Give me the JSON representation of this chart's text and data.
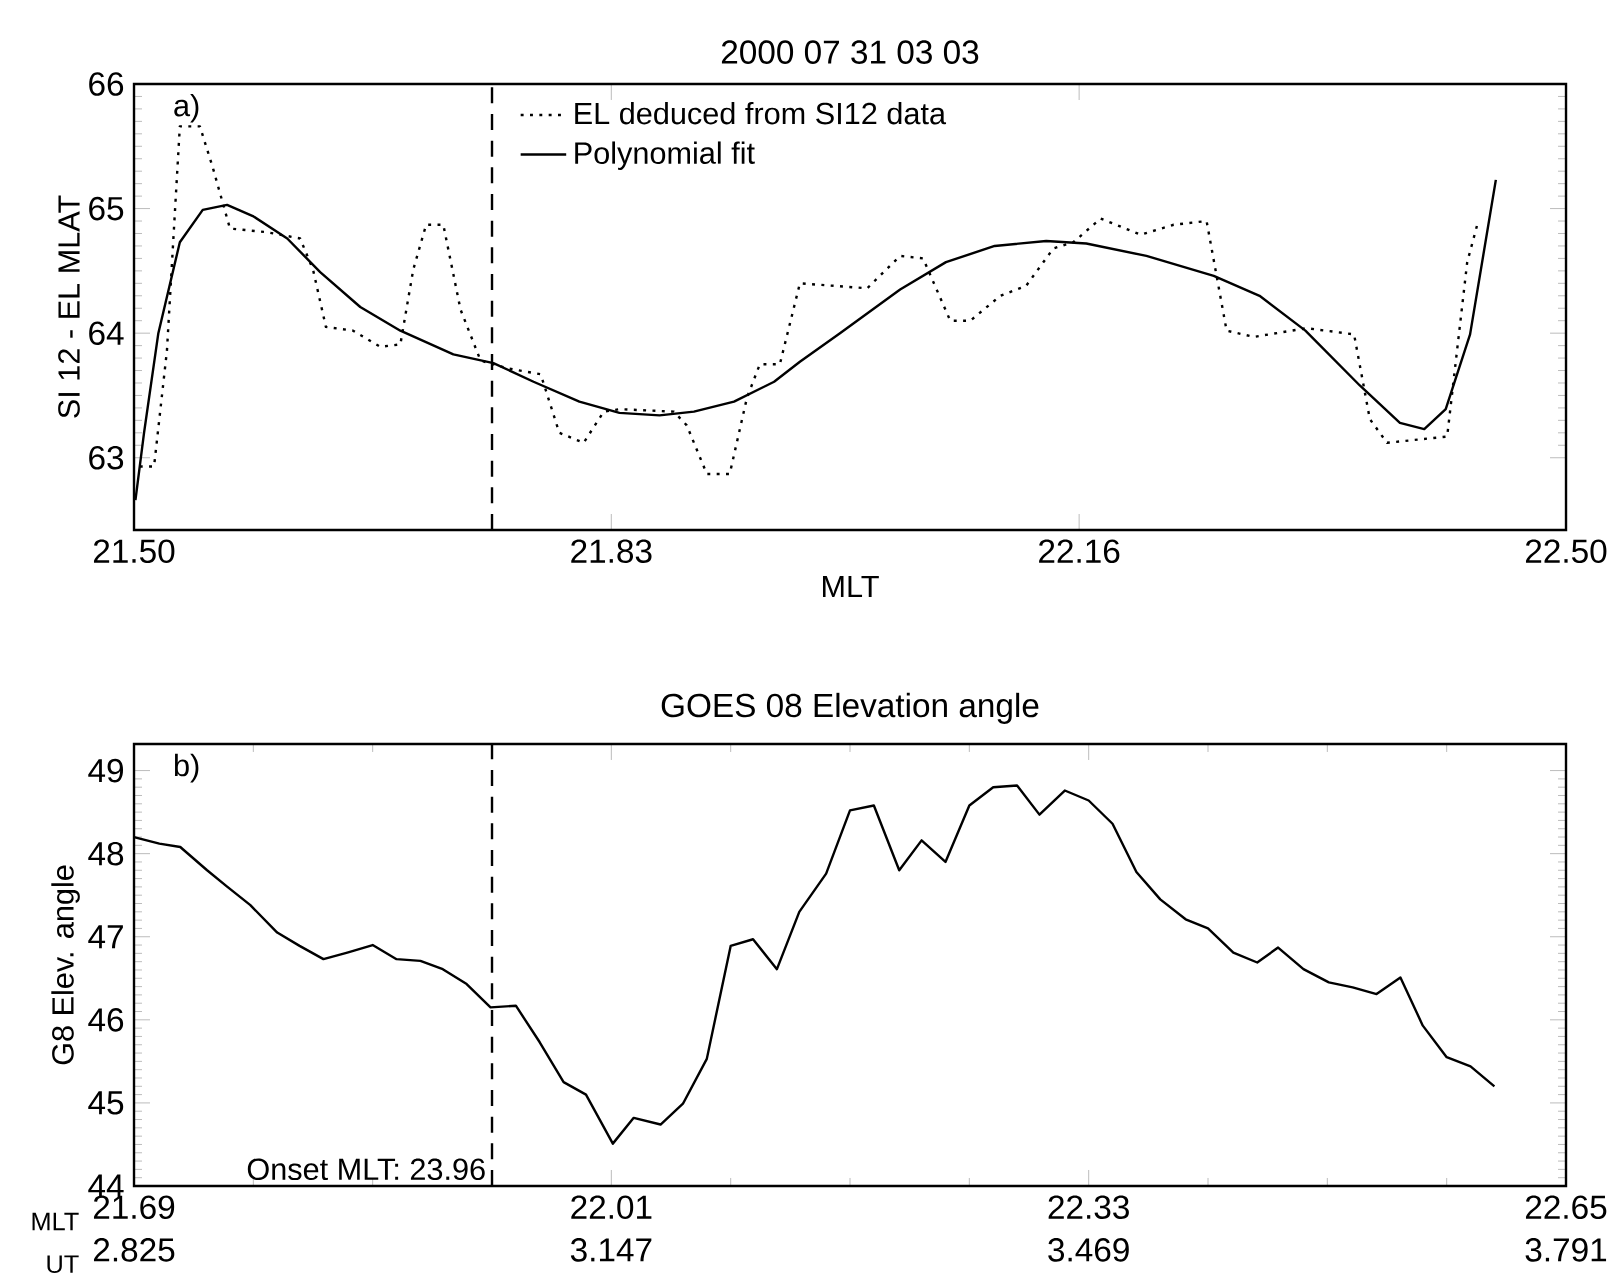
{
  "chart_data": [
    {
      "type": "line",
      "title": "2000 07 31 03 03",
      "xlabel": "MLT",
      "ylabel": "SI 12 - EL MLAT",
      "xlim": [
        21.5,
        22.5
      ],
      "ylim": [
        62.42,
        66.0
      ],
      "xticks": [
        {
          "value": 21.5,
          "label": "21.50"
        },
        {
          "value": 21.8333,
          "label": "21.83"
        },
        {
          "value": 22.16,
          "label": "22.16"
        },
        {
          "value": 22.5,
          "label": "22.50"
        }
      ],
      "yticks": [
        63,
        64,
        65,
        66
      ],
      "legend": "top",
      "marker": "none",
      "annotations": [
        "a)"
      ],
      "ref_lines": [
        {
          "axis": "x",
          "value": 21.75,
          "line_style": "dashed",
          "color": "#000000"
        }
      ],
      "series": [
        {
          "name": "EL deduced from SI12 data",
          "color": "#000000",
          "line_style": "dotted",
          "x": [
            21.504,
            21.514,
            21.523,
            21.532,
            21.546,
            21.555,
            21.567,
            21.593,
            21.616,
            21.625,
            21.634,
            21.653,
            21.672,
            21.686,
            21.695,
            21.704,
            21.716,
            21.728,
            21.742,
            21.76,
            21.784,
            21.797,
            21.814,
            21.828,
            21.839,
            21.877,
            21.886,
            21.9,
            21.916,
            21.928,
            21.937,
            21.951,
            21.965,
            22.012,
            22.035,
            22.051,
            22.07,
            22.084,
            22.105,
            22.123,
            22.142,
            22.156,
            22.175,
            22.203,
            22.226,
            22.249,
            22.263,
            22.282,
            22.319,
            22.352,
            22.363,
            22.375,
            22.417,
            22.431,
            22.438
          ],
          "values": [
            62.93,
            62.93,
            63.86,
            65.66,
            65.66,
            65.33,
            64.84,
            64.81,
            64.76,
            64.51,
            64.05,
            64.02,
            63.89,
            63.91,
            64.51,
            64.87,
            64.87,
            64.19,
            63.78,
            63.72,
            63.67,
            63.2,
            63.12,
            63.37,
            63.39,
            63.37,
            63.26,
            62.87,
            62.87,
            63.48,
            63.75,
            63.75,
            64.4,
            64.36,
            64.62,
            64.6,
            64.1,
            64.1,
            64.3,
            64.38,
            64.68,
            64.73,
            64.92,
            64.79,
            64.87,
            64.9,
            64.02,
            63.97,
            64.04,
            63.99,
            63.31,
            63.12,
            63.17,
            64.57,
            64.87
          ]
        },
        {
          "name": "Polynomial fit",
          "color": "#000000",
          "line_style": "solid",
          "x": [
            21.501,
            21.507,
            21.517,
            21.532,
            21.548,
            21.565,
            21.583,
            21.607,
            21.63,
            21.658,
            21.686,
            21.723,
            21.751,
            21.779,
            21.811,
            21.839,
            21.867,
            21.891,
            21.919,
            21.947,
            21.965,
            21.993,
            22.035,
            22.067,
            22.101,
            22.137,
            22.165,
            22.207,
            22.254,
            22.286,
            22.318,
            22.356,
            22.384,
            22.401,
            22.416,
            22.433,
            22.451
          ],
          "values": [
            62.66,
            63.2,
            64.0,
            64.73,
            64.99,
            65.03,
            64.94,
            64.76,
            64.49,
            64.21,
            64.02,
            63.83,
            63.76,
            63.61,
            63.45,
            63.36,
            63.34,
            63.37,
            63.45,
            63.61,
            63.77,
            64.0,
            64.35,
            64.57,
            64.7,
            64.74,
            64.72,
            64.62,
            64.46,
            64.3,
            64.02,
            63.58,
            63.28,
            63.23,
            63.39,
            63.99,
            65.23
          ]
        }
      ]
    },
    {
      "type": "line",
      "title": "GOES 08 Elevation angle",
      "xlabel": "MLT",
      "x2label": "UT",
      "ylabel": "G8 Elev. angle",
      "xlim": [
        21.69,
        22.65
      ],
      "x2lim": [
        2.825,
        3.791
      ],
      "ylim": [
        44.0,
        49.32
      ],
      "xticks": [
        21.69,
        22.01,
        22.33,
        22.65
      ],
      "x2ticks": [
        2.825,
        3.147,
        3.469,
        3.791
      ],
      "yticks": [
        44,
        45,
        46,
        47,
        48,
        49
      ],
      "marker": "none",
      "annotations": [
        "b)",
        "Onset MLT: 23.96"
      ],
      "ref_lines": [
        {
          "axis": "x",
          "value": 21.93,
          "line_style": "dashed",
          "color": "#000000"
        }
      ],
      "series": [
        {
          "color": "#000000",
          "line_style": "solid",
          "x": [
            21.69,
            21.707,
            21.721,
            21.739,
            21.752,
            21.768,
            21.786,
            21.801,
            21.817,
            21.833,
            21.85,
            21.866,
            21.882,
            21.897,
            21.913,
            21.929,
            21.946,
            21.962,
            21.978,
            21.993,
            22.011,
            22.025,
            22.043,
            22.058,
            22.074,
            22.09,
            22.105,
            22.121,
            22.136,
            22.154,
            22.17,
            22.186,
            22.203,
            22.218,
            22.234,
            22.25,
            22.266,
            22.282,
            22.297,
            22.314,
            22.33,
            22.346,
            22.362,
            22.378,
            22.395,
            22.41,
            22.427,
            22.443,
            22.457,
            22.474,
            22.491,
            22.507,
            22.523,
            22.539,
            22.554,
            22.57,
            22.586,
            22.602
          ],
          "values": [
            48.2,
            48.12,
            48.08,
            47.8,
            47.61,
            47.38,
            47.05,
            46.89,
            46.73,
            46.81,
            46.9,
            46.73,
            46.71,
            46.61,
            46.43,
            46.15,
            46.17,
            45.73,
            45.25,
            45.1,
            44.51,
            44.82,
            44.74,
            44.99,
            45.53,
            46.89,
            46.97,
            46.61,
            47.3,
            47.76,
            48.52,
            48.58,
            47.8,
            48.16,
            47.9,
            48.58,
            48.8,
            48.82,
            48.47,
            48.76,
            48.64,
            48.36,
            47.78,
            47.45,
            47.21,
            47.1,
            46.81,
            46.69,
            46.87,
            46.61,
            46.45,
            46.39,
            46.31,
            46.51,
            45.93,
            45.55,
            45.44,
            45.2
          ]
        }
      ]
    }
  ]
}
